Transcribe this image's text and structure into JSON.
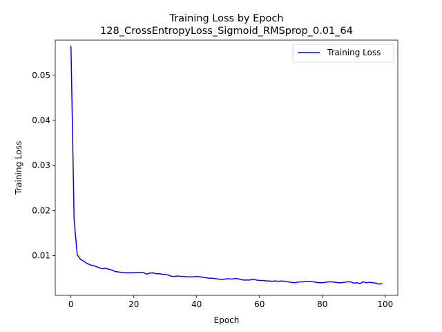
{
  "chart_data": {
    "type": "line",
    "title": "Training Loss by Epoch",
    "subtitle": "128_CrossEntropyLoss_Sigmoid_RMSprop_0.01_64",
    "xlabel": "Epoch",
    "ylabel": "Training Loss",
    "xlim": [
      -5,
      104
    ],
    "ylim": [
      0.0012,
      0.0578
    ],
    "x_ticks": [
      0,
      20,
      40,
      60,
      80,
      100
    ],
    "y_ticks": [
      0.01,
      0.02,
      0.03,
      0.04,
      0.05
    ],
    "x_tick_labels": [
      "0",
      "20",
      "40",
      "60",
      "80",
      "100"
    ],
    "y_tick_labels": [
      "0.01",
      "0.02",
      "0.03",
      "0.04",
      "0.05"
    ],
    "grid": false,
    "legend_position": "top-right",
    "series": [
      {
        "name": "Training Loss",
        "color": "#0000ff",
        "x": [
          0,
          1,
          2,
          3,
          4,
          5,
          6,
          7,
          8,
          9,
          10,
          11,
          12,
          13,
          14,
          15,
          16,
          17,
          18,
          19,
          20,
          21,
          22,
          23,
          24,
          25,
          26,
          27,
          28,
          29,
          30,
          31,
          32,
          33,
          34,
          35,
          36,
          37,
          38,
          39,
          40,
          41,
          42,
          43,
          44,
          45,
          46,
          47,
          48,
          49,
          50,
          51,
          52,
          53,
          54,
          55,
          56,
          57,
          58,
          59,
          60,
          61,
          62,
          63,
          64,
          65,
          66,
          67,
          68,
          69,
          70,
          71,
          72,
          73,
          74,
          75,
          76,
          77,
          78,
          79,
          80,
          81,
          82,
          83,
          84,
          85,
          86,
          87,
          88,
          89,
          90,
          91,
          92,
          93,
          94,
          95,
          96,
          97,
          98,
          99
        ],
        "values": [
          0.0565,
          0.018,
          0.0102,
          0.0092,
          0.0088,
          0.0083,
          0.008,
          0.0078,
          0.0076,
          0.0073,
          0.0071,
          0.0072,
          0.007,
          0.0068,
          0.0065,
          0.0064,
          0.0063,
          0.0062,
          0.0062,
          0.0062,
          0.0062,
          0.0063,
          0.0063,
          0.0063,
          0.0059,
          0.0061,
          0.0062,
          0.006,
          0.006,
          0.0059,
          0.0058,
          0.0057,
          0.0054,
          0.0054,
          0.0055,
          0.0054,
          0.0054,
          0.0053,
          0.0053,
          0.0053,
          0.0054,
          0.0053,
          0.0052,
          0.0051,
          0.005,
          0.005,
          0.0049,
          0.0048,
          0.0047,
          0.0048,
          0.0049,
          0.0048,
          0.0049,
          0.0049,
          0.0047,
          0.0046,
          0.0046,
          0.0046,
          0.0048,
          0.0046,
          0.0045,
          0.0045,
          0.0044,
          0.0044,
          0.0043,
          0.0044,
          0.0043,
          0.0044,
          0.0043,
          0.0042,
          0.0041,
          0.004,
          0.0041,
          0.0042,
          0.0042,
          0.0043,
          0.0043,
          0.0042,
          0.0041,
          0.004,
          0.004,
          0.0041,
          0.0042,
          0.0042,
          0.0041,
          0.004,
          0.004,
          0.0041,
          0.0042,
          0.0042,
          0.0039,
          0.004,
          0.0038,
          0.0042,
          0.004,
          0.0041,
          0.004,
          0.0039,
          0.0037,
          0.0038
        ]
      }
    ]
  }
}
